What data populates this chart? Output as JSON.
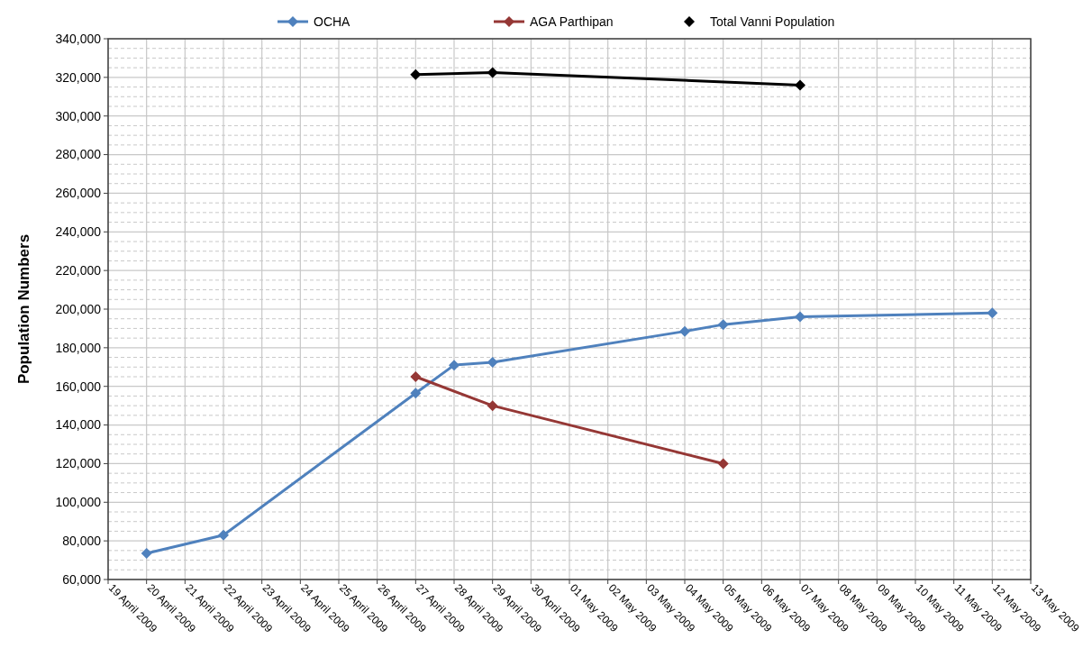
{
  "chart_data": {
    "type": "line",
    "ylabel": "Population Numbers",
    "xlim": [
      "2009-04-19",
      "2009-05-13"
    ],
    "xticks": [
      {
        "value": "2009-04-19",
        "label": "19 April 2009"
      },
      {
        "value": "2009-04-20",
        "label": "20 April 2009"
      },
      {
        "value": "2009-04-21",
        "label": "21 April 2009"
      },
      {
        "value": "2009-04-22",
        "label": "22 April 2009"
      },
      {
        "value": "2009-04-23",
        "label": "23 April 2009"
      },
      {
        "value": "2009-04-24",
        "label": "24 April 2009"
      },
      {
        "value": "2009-04-25",
        "label": "25 April 2009"
      },
      {
        "value": "2009-04-26",
        "label": "26 April 2009"
      },
      {
        "value": "2009-04-27",
        "label": "27 April 2009"
      },
      {
        "value": "2009-04-28",
        "label": "28 April 2009"
      },
      {
        "value": "2009-04-29",
        "label": "29 April 2009"
      },
      {
        "value": "2009-04-30",
        "label": "30 April 2009"
      },
      {
        "value": "2009-05-01",
        "label": "01 May 2009"
      },
      {
        "value": "2009-05-02",
        "label": "02 May 2009"
      },
      {
        "value": "2009-05-03",
        "label": "03 May 2009"
      },
      {
        "value": "2009-05-04",
        "label": "04 May 2009"
      },
      {
        "value": "2009-05-05",
        "label": "05 May 2009"
      },
      {
        "value": "2009-05-06",
        "label": "06 May 2009"
      },
      {
        "value": "2009-05-07",
        "label": "07 May 2009"
      },
      {
        "value": "2009-05-08",
        "label": "08 May 2009"
      },
      {
        "value": "2009-05-09",
        "label": "09 May 2009"
      },
      {
        "value": "2009-05-10",
        "label": "10 May 2009"
      },
      {
        "value": "2009-05-11",
        "label": "11 May 2009"
      },
      {
        "value": "2009-05-12",
        "label": "12 May 2009"
      },
      {
        "value": "2009-05-13",
        "label": "13 May 2009"
      }
    ],
    "ylim": [
      60000,
      340000
    ],
    "yticks": [
      {
        "value": 60000,
        "label": "60,000"
      },
      {
        "value": 80000,
        "label": "80,000"
      },
      {
        "value": 100000,
        "label": "100,000"
      },
      {
        "value": 120000,
        "label": "120,000"
      },
      {
        "value": 140000,
        "label": "140,000"
      },
      {
        "value": 160000,
        "label": "160,000"
      },
      {
        "value": 180000,
        "label": "180,000"
      },
      {
        "value": 200000,
        "label": "200,000"
      },
      {
        "value": 220000,
        "label": "220,000"
      },
      {
        "value": 240000,
        "label": "240,000"
      },
      {
        "value": 260000,
        "label": "260,000"
      },
      {
        "value": 280000,
        "label": "280,000"
      },
      {
        "value": 300000,
        "label": "300,000"
      },
      {
        "value": 320000,
        "label": "320,000"
      },
      {
        "value": 340000,
        "label": "340,000"
      }
    ],
    "grid": true,
    "legend": "top",
    "marker": "diamond",
    "series": [
      {
        "name": "OCHA",
        "color": "#4f81bd",
        "x": [
          "2009-04-20",
          "2009-04-22",
          "2009-04-27",
          "2009-04-28",
          "2009-04-29",
          "2009-05-04",
          "2009-05-05",
          "2009-05-07",
          "2009-05-12"
        ],
        "values": [
          73500,
          83000,
          156500,
          171000,
          172500,
          188500,
          192000,
          196000,
          198000
        ]
      },
      {
        "name": "AGA Parthipan",
        "color": "#953735",
        "x": [
          "2009-04-27",
          "2009-04-29",
          "2009-05-05"
        ],
        "values": [
          165000,
          150000,
          120000
        ]
      },
      {
        "name": "Total Vanni Population",
        "color": "#000000",
        "x": [
          "2009-04-27",
          "2009-04-29",
          "2009-05-07"
        ],
        "values": [
          321500,
          322500,
          316000
        ]
      }
    ]
  }
}
